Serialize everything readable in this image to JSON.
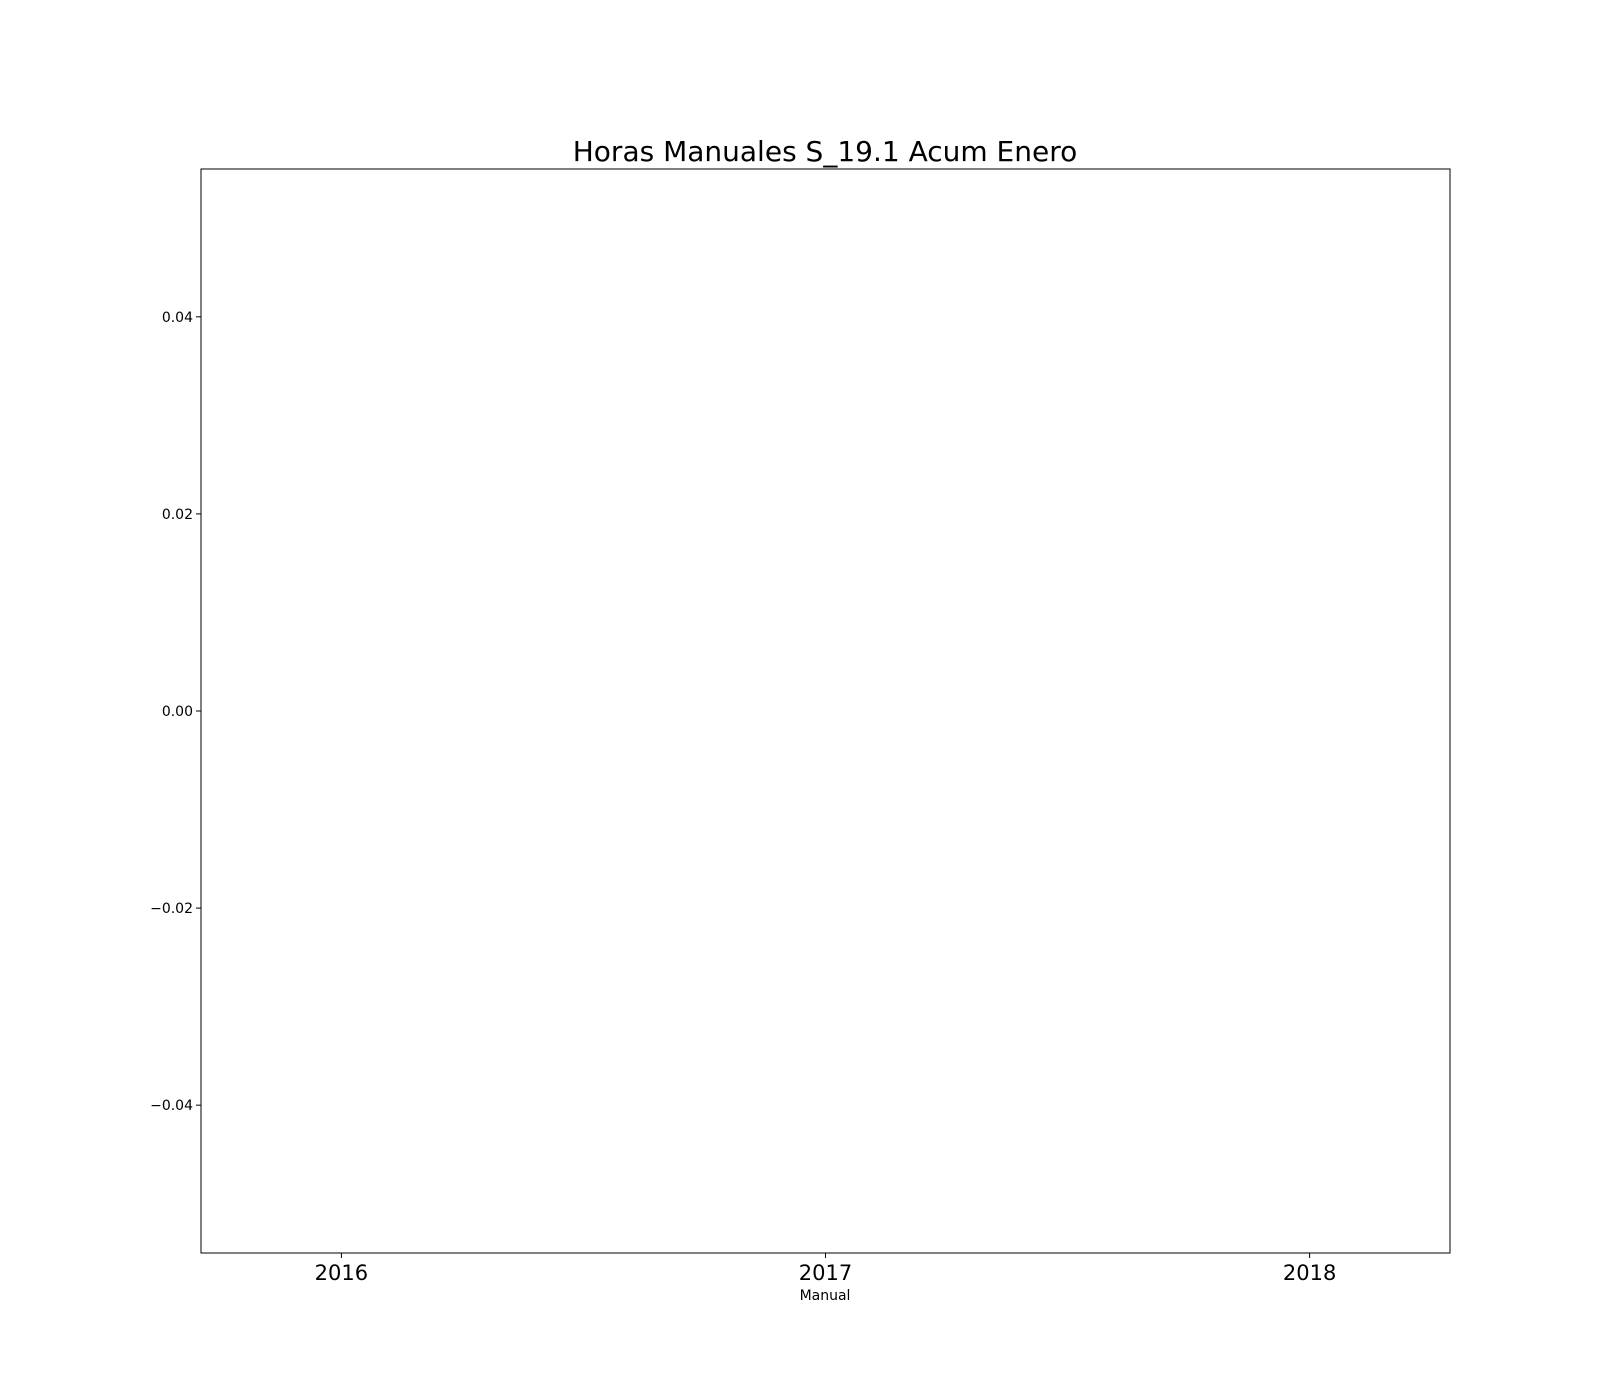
{
  "chart_data": {
    "type": "line",
    "title": "Horas Manuales S_19.1 Acum Enero",
    "xlabel": "Manual",
    "ylabel": "",
    "x_tick_labels": [
      "2016",
      "2017",
      "2018"
    ],
    "x_ticks": [
      2016,
      2017,
      2018
    ],
    "xlim": [
      2015.71,
      2018.29
    ],
    "y_ticks": [
      -0.04,
      -0.02,
      0.0,
      0.02,
      0.04
    ],
    "y_tick_labels": [
      "−0.04",
      "−0.02",
      "0.00",
      "0.02",
      "0.04"
    ],
    "ylim": [
      -0.055,
      0.055
    ],
    "grid": false,
    "series": []
  }
}
